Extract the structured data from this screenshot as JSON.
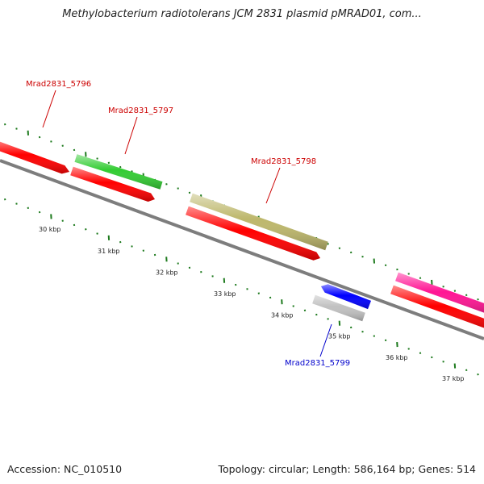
{
  "title": "Methylobacterium radiotolerans JCM 2831 plasmid pMRAD01, com...",
  "footer": {
    "accession": "Accession: NC_010510",
    "summary": "Topology: circular; Length: 586,164 bp; Genes: 514"
  },
  "colors": {
    "backbone": "#7d7d7d",
    "tick": "#1d7a1d",
    "label_default": "#cc0000",
    "label_highlight": "#0000cc"
  },
  "kbp_labels": [
    "30 kbp",
    "31 kbp",
    "32 kbp",
    "33 kbp",
    "34 kbp",
    "35 kbp",
    "36 kbp",
    "37 kbp"
  ],
  "gene_labels": [
    {
      "id": "g5796",
      "text": "Mrad2831_5796",
      "color": "#cc0000"
    },
    {
      "id": "g5797",
      "text": "Mrad2831_5797",
      "color": "#cc0000"
    },
    {
      "id": "g5798",
      "text": "Mrad2831_5798",
      "color": "#cc0000"
    },
    {
      "id": "g5799",
      "text": "Mrad2831_5799",
      "color": "#0000cc"
    }
  ],
  "features": [
    {
      "name": "cds-5796",
      "color": "#ff0000"
    },
    {
      "name": "gene-green",
      "color": "#33cc33"
    },
    {
      "name": "cds-5797",
      "color": "#ff0000"
    },
    {
      "name": "gene-olive",
      "color": "#bdb76b"
    },
    {
      "name": "cds-5798",
      "color": "#ff0000"
    },
    {
      "name": "gene-blue",
      "color": "#0000ff"
    },
    {
      "name": "gene-grey",
      "color": "#c0c0c0"
    },
    {
      "name": "gene-magenta",
      "color": "#ff1493"
    },
    {
      "name": "cds-right",
      "color": "#ff0000"
    }
  ]
}
